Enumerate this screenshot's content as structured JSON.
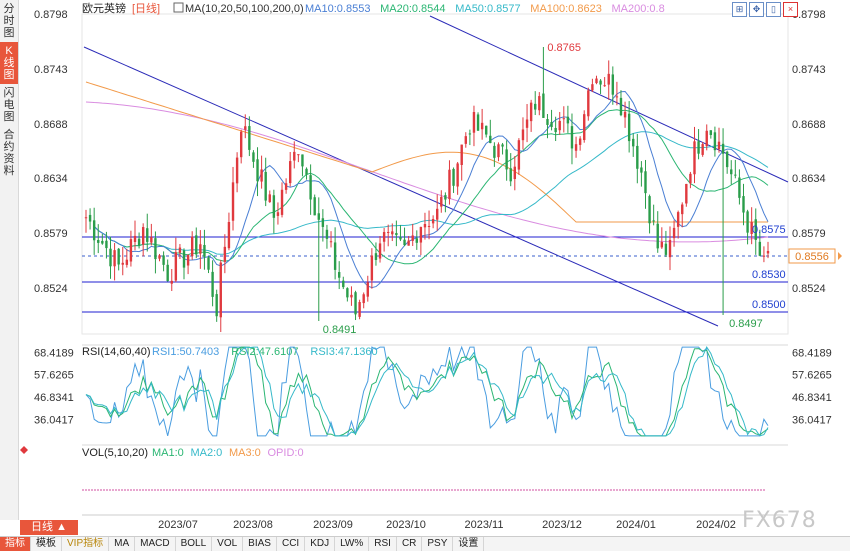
{
  "sidebar": {
    "items": [
      "分时图",
      "K线图",
      "闪电图",
      "合约资料"
    ],
    "active_index": 1
  },
  "header": {
    "symbol": "欧元英镑",
    "period": "[日线]",
    "ma_label": "MA(10,20,50,100,200,0)"
  },
  "toolbar": {
    "icons": [
      "expand-icon",
      "move-icon",
      "fit-icon",
      "close-icon"
    ]
  },
  "chart_data": [
    {
      "type": "candlestick",
      "name": "price",
      "y_ticks": [
        "0.8798",
        "0.8743",
        "0.8688",
        "0.8634",
        "0.8579",
        "0.8524"
      ],
      "ylim": [
        0.8478,
        0.8798
      ],
      "x_ticks": [
        "2023/07",
        "2023/08",
        "2023/09",
        "2023/10",
        "2023/11",
        "2023/12",
        "2024/01",
        "2024/02"
      ],
      "legend": [
        {
          "text": "MA10:0.8553",
          "color": "#4a7fd4"
        },
        {
          "text": "MA20:0.8544",
          "color": "#2bb673"
        },
        {
          "text": "MA50:0.8577",
          "color": "#36b9c9"
        },
        {
          "text": "MA100:0.8623",
          "color": "#f29a4a"
        },
        {
          "text": "MA200:0.8",
          "color": "#d98ce0"
        }
      ],
      "annotations": [
        {
          "text": "0.8765",
          "color": "#e0393e"
        },
        {
          "text": "0.8491",
          "color": "#2a9d4a"
        },
        {
          "text": "0.8497",
          "color": "#2a9d4a"
        },
        {
          "text": "0.8575",
          "color": "#1f3fd0"
        },
        {
          "text": "0.8530",
          "color": "#1f3fd0"
        },
        {
          "text": "0.8500",
          "color": "#1f3fd0"
        }
      ],
      "current_price": "0.8556",
      "levels": [
        0.8575,
        0.853,
        0.85
      ],
      "support_resistance_color": "#1f1fd0",
      "up_color": "#e0393e",
      "down_color": "#2a9d4a",
      "ma_colors": {
        "ma10": "#4a7fd4",
        "ma20": "#2bb673",
        "ma50": "#36b9c9",
        "ma100": "#f29a4a",
        "ma200": "#d98ce0"
      }
    },
    {
      "type": "line",
      "name": "rsi",
      "title": "RSI(14,60,40)",
      "legend": [
        {
          "text": "RSI1:50.7403",
          "color": "#4a9de0"
        },
        {
          "text": "RSI2:47.6107",
          "color": "#2bb673"
        },
        {
          "text": "RSI3:47.1360",
          "color": "#36b9c9"
        }
      ],
      "y_ticks": [
        "68.4189",
        "57.6265",
        "46.8341",
        "36.0417"
      ],
      "ylim": [
        26,
        72
      ]
    },
    {
      "type": "bar",
      "name": "volume",
      "title": "VOL(5,10,20)",
      "legend": [
        {
          "text": "MA1:0",
          "color": "#2bb673"
        },
        {
          "text": "MA2:0",
          "color": "#36b9c9"
        },
        {
          "text": "MA3:0",
          "color": "#f29a4a"
        },
        {
          "text": "OPID:0",
          "color": "#d98ce0"
        }
      ]
    }
  ],
  "bottom": {
    "period_button": "日线 ▲",
    "tabs": [
      "指标",
      "模板",
      "VIP指标",
      "MA",
      "MACD",
      "BOLL",
      "VOL",
      "BIAS",
      "CCI",
      "KDJ",
      "LW%",
      "RSI",
      "CR",
      "PSY",
      "设置"
    ],
    "active_index": 0,
    "vip_index": 2
  },
  "watermark": "FX678"
}
